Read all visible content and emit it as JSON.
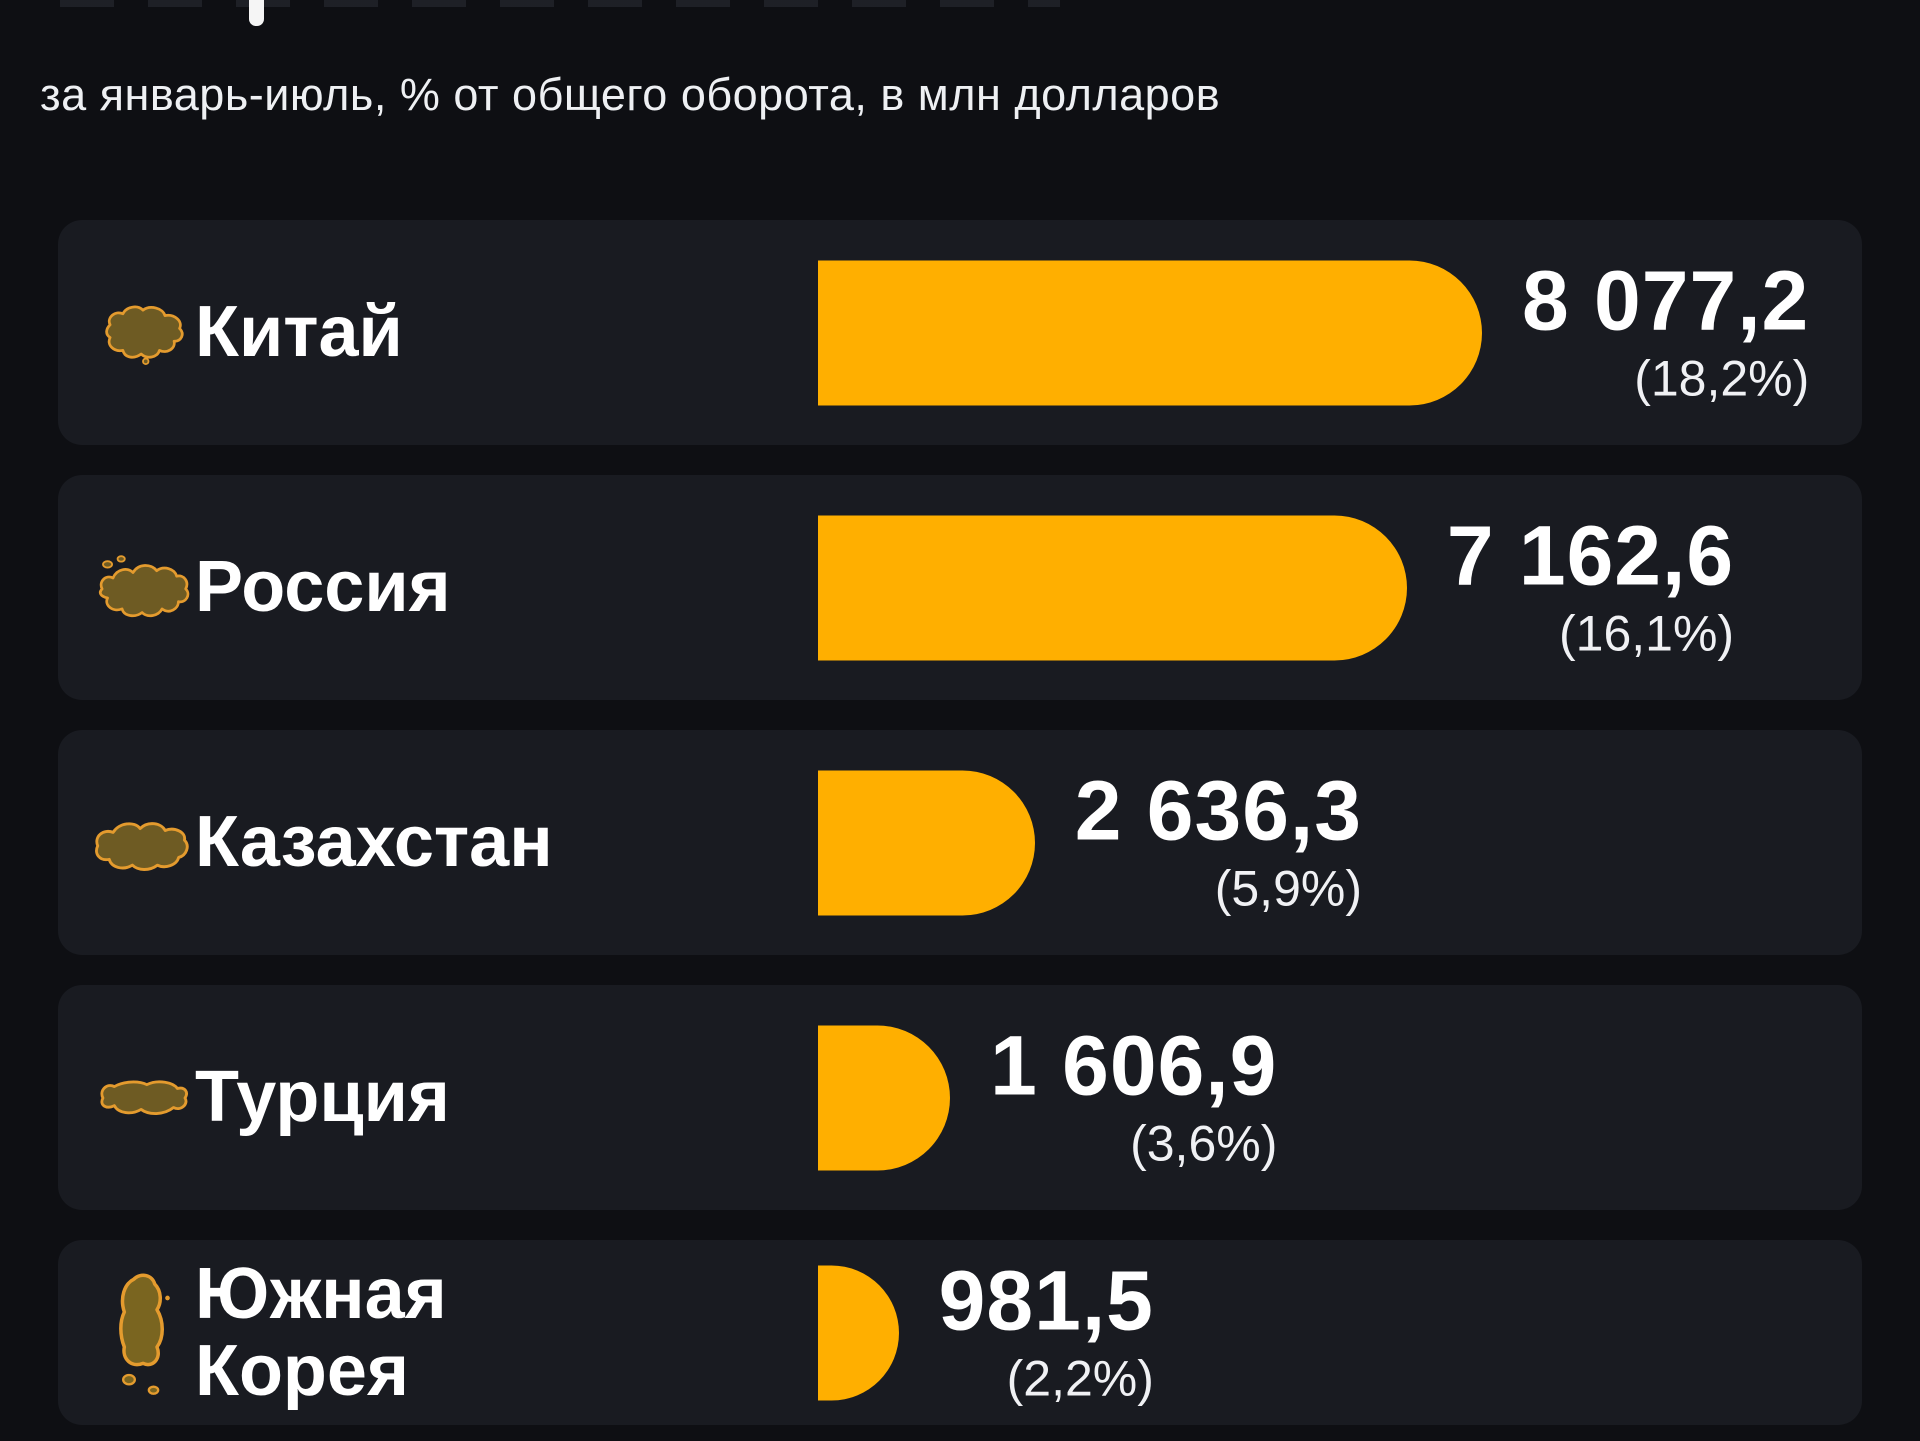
{
  "colors": {
    "page_bg": "#0e0f13",
    "card_bg": "#191b21",
    "bar": "#ffaf00",
    "icon_fill": "#6e5b23",
    "icon_stroke": "#e49b2e",
    "text": "#ffffff"
  },
  "header": {
    "subtitle": "за январь-июль, % от общего оборота, в млн долларов"
  },
  "chart_data": {
    "type": "bar",
    "orientation": "horizontal",
    "subtitle": "за январь-июль, % от общего оборота, в млн долларов",
    "units": "млн долларов",
    "categories": [
      "Китай",
      "Россия",
      "Казахстан",
      "Турция",
      "Южная Корея"
    ],
    "values": [
      8077.2,
      7162.6,
      2636.3,
      1606.9,
      981.5
    ],
    "percent_of_total": [
      18.2,
      16.1,
      5.9,
      3.6,
      2.2
    ],
    "value_labels": [
      "8 077,2",
      "7 162,6",
      "2 636,3",
      "1 606,9",
      "981,5"
    ],
    "percent_labels": [
      "(18,2%)",
      "(16,1%)",
      "(5,9%)",
      "(3,6%)",
      "(2,2%)"
    ],
    "xlim": [
      0,
      8077.2
    ],
    "grid": false,
    "legend": false,
    "bar_color": "#ffaf00"
  },
  "rows": [
    {
      "country": "Китай",
      "icon": "china-map",
      "value_label": "8 077,2",
      "percent_label": "(18,2%)"
    },
    {
      "country": "Россия",
      "icon": "russia-map",
      "value_label": "7 162,6",
      "percent_label": "(16,1%)"
    },
    {
      "country": "Казахстан",
      "icon": "kazakhstan-map",
      "value_label": "2 636,3",
      "percent_label": "(5,9%)"
    },
    {
      "country": "Турция",
      "icon": "turkey-map",
      "value_label": "1 606,9",
      "percent_label": "(3,6%)"
    },
    {
      "country": "Южная Корея",
      "icon": "south-korea-map",
      "value_label": "981,5",
      "percent_label": "(2,2%)"
    }
  ]
}
